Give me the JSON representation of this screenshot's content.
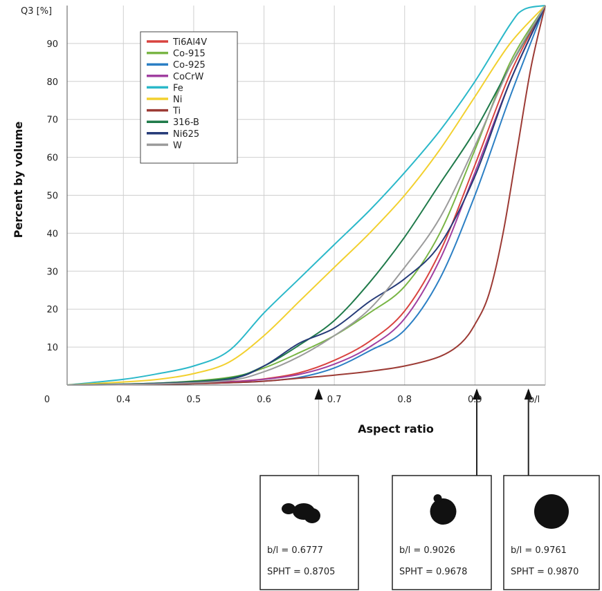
{
  "chart_data": {
    "type": "line",
    "title": "",
    "xlabel": "Aspect ratio",
    "ylabel": "Percent by volume",
    "y_unit_label": "Q3 [%]",
    "x_unit_label": "b/l",
    "xlim": [
      0.32,
      1.0
    ],
    "ylim": [
      0,
      100
    ],
    "x_tick_labels": [
      {
        "x": 0.32,
        "label": "0"
      },
      {
        "x": 0.4,
        "label": "0.4"
      },
      {
        "x": 0.5,
        "label": "0.5"
      },
      {
        "x": 0.6,
        "label": "0.6"
      },
      {
        "x": 0.7,
        "label": "0.7"
      },
      {
        "x": 0.8,
        "label": "0.8"
      },
      {
        "x": 0.9,
        "label": "0.9"
      }
    ],
    "y_ticks": [
      10,
      20,
      30,
      40,
      50,
      60,
      70,
      80,
      90
    ],
    "grid": true,
    "legend_position": "top-left",
    "series": [
      {
        "name": "Ti6Al4V",
        "color": "#d9433f",
        "points": [
          [
            0.32,
            0
          ],
          [
            0.45,
            0.3
          ],
          [
            0.55,
            0.9
          ],
          [
            0.6,
            1.6
          ],
          [
            0.65,
            3.2
          ],
          [
            0.7,
            6.5
          ],
          [
            0.75,
            11.5
          ],
          [
            0.8,
            19.5
          ],
          [
            0.85,
            35
          ],
          [
            0.9,
            58
          ],
          [
            0.95,
            82
          ],
          [
            1.0,
            100
          ]
        ]
      },
      {
        "name": "Co-915",
        "color": "#79b545",
        "points": [
          [
            0.32,
            0
          ],
          [
            0.45,
            0.5
          ],
          [
            0.55,
            2.0
          ],
          [
            0.6,
            4.5
          ],
          [
            0.65,
            8.5
          ],
          [
            0.7,
            13
          ],
          [
            0.75,
            19
          ],
          [
            0.8,
            26
          ],
          [
            0.85,
            40
          ],
          [
            0.9,
            62
          ],
          [
            0.95,
            85
          ],
          [
            1.0,
            100
          ]
        ]
      },
      {
        "name": "Co-925",
        "color": "#2b7fc4",
        "points": [
          [
            0.32,
            0
          ],
          [
            0.45,
            0.2
          ],
          [
            0.55,
            0.6
          ],
          [
            0.6,
            1.0
          ],
          [
            0.65,
            2.0
          ],
          [
            0.7,
            4.5
          ],
          [
            0.75,
            9
          ],
          [
            0.8,
            14.5
          ],
          [
            0.85,
            28
          ],
          [
            0.9,
            50
          ],
          [
            0.95,
            76
          ],
          [
            1.0,
            100
          ]
        ]
      },
      {
        "name": "CoCrW",
        "color": "#a03fa0",
        "points": [
          [
            0.32,
            0
          ],
          [
            0.45,
            0.3
          ],
          [
            0.55,
            0.8
          ],
          [
            0.6,
            1.5
          ],
          [
            0.65,
            2.8
          ],
          [
            0.7,
            5.5
          ],
          [
            0.75,
            10
          ],
          [
            0.8,
            17.5
          ],
          [
            0.85,
            33
          ],
          [
            0.9,
            56
          ],
          [
            0.95,
            80
          ],
          [
            1.0,
            100
          ]
        ]
      },
      {
        "name": "Fe",
        "color": "#2ab8c9",
        "points": [
          [
            0.32,
            0
          ],
          [
            0.4,
            1.5
          ],
          [
            0.45,
            3
          ],
          [
            0.5,
            5
          ],
          [
            0.55,
            9
          ],
          [
            0.6,
            19
          ],
          [
            0.65,
            28
          ],
          [
            0.7,
            37
          ],
          [
            0.75,
            46
          ],
          [
            0.8,
            56
          ],
          [
            0.85,
            67
          ],
          [
            0.9,
            80
          ],
          [
            0.95,
            95
          ],
          [
            0.97,
            99
          ],
          [
            1.0,
            100
          ]
        ]
      },
      {
        "name": "Ni",
        "color": "#f2d02e",
        "points": [
          [
            0.32,
            0
          ],
          [
            0.4,
            0.8
          ],
          [
            0.45,
            1.5
          ],
          [
            0.5,
            3
          ],
          [
            0.55,
            6
          ],
          [
            0.6,
            13
          ],
          [
            0.65,
            22
          ],
          [
            0.7,
            31
          ],
          [
            0.75,
            40
          ],
          [
            0.8,
            50
          ],
          [
            0.85,
            62
          ],
          [
            0.9,
            76
          ],
          [
            0.95,
            90
          ],
          [
            1.0,
            100
          ]
        ]
      },
      {
        "name": "Ti",
        "color": "#9c3a34",
        "points": [
          [
            0.32,
            0
          ],
          [
            0.45,
            0.2
          ],
          [
            0.55,
            0.6
          ],
          [
            0.6,
            1.0
          ],
          [
            0.65,
            1.8
          ],
          [
            0.7,
            2.6
          ],
          [
            0.75,
            3.6
          ],
          [
            0.8,
            5.0
          ],
          [
            0.85,
            7.5
          ],
          [
            0.88,
            11
          ],
          [
            0.9,
            16
          ],
          [
            0.92,
            24
          ],
          [
            0.94,
            40
          ],
          [
            0.96,
            62
          ],
          [
            0.98,
            84
          ],
          [
            1.0,
            100
          ]
        ]
      },
      {
        "name": "316-B",
        "color": "#1f7a4a",
        "points": [
          [
            0.32,
            0
          ],
          [
            0.45,
            0.5
          ],
          [
            0.55,
            1.8
          ],
          [
            0.6,
            5
          ],
          [
            0.65,
            10.5
          ],
          [
            0.7,
            17
          ],
          [
            0.75,
            27
          ],
          [
            0.8,
            39
          ],
          [
            0.85,
            53
          ],
          [
            0.9,
            67
          ],
          [
            0.95,
            84
          ],
          [
            1.0,
            100
          ]
        ]
      },
      {
        "name": "Ni625",
        "color": "#263b78",
        "points": [
          [
            0.32,
            0
          ],
          [
            0.45,
            0.4
          ],
          [
            0.55,
            1.5
          ],
          [
            0.6,
            5
          ],
          [
            0.65,
            11
          ],
          [
            0.7,
            15
          ],
          [
            0.75,
            22
          ],
          [
            0.8,
            28
          ],
          [
            0.85,
            37
          ],
          [
            0.9,
            55
          ],
          [
            0.95,
            80
          ],
          [
            1.0,
            100
          ]
        ]
      },
      {
        "name": "W",
        "color": "#9b9b9b",
        "points": [
          [
            0.32,
            0
          ],
          [
            0.45,
            0.3
          ],
          [
            0.55,
            1.2
          ],
          [
            0.6,
            3.5
          ],
          [
            0.65,
            7.5
          ],
          [
            0.7,
            13
          ],
          [
            0.75,
            20
          ],
          [
            0.8,
            31
          ],
          [
            0.85,
            44
          ],
          [
            0.9,
            63
          ],
          [
            0.95,
            84
          ],
          [
            1.0,
            100
          ]
        ]
      }
    ],
    "annotations": [
      {
        "x": 0.6777,
        "line_color": "#bdbdbd",
        "label1": "b/l = 0.6777",
        "label2": "SPHT = 0.8705",
        "shape": "irregular"
      },
      {
        "x": 0.9026,
        "line_color": "#222222",
        "label1": "b/l = 0.9026",
        "label2": "SPHT = 0.9678",
        "shape": "bumped"
      },
      {
        "x": 0.9761,
        "line_color": "#222222",
        "label1": "b/l = 0.9761",
        "label2": "SPHT = 0.9870",
        "shape": "round"
      }
    ]
  }
}
